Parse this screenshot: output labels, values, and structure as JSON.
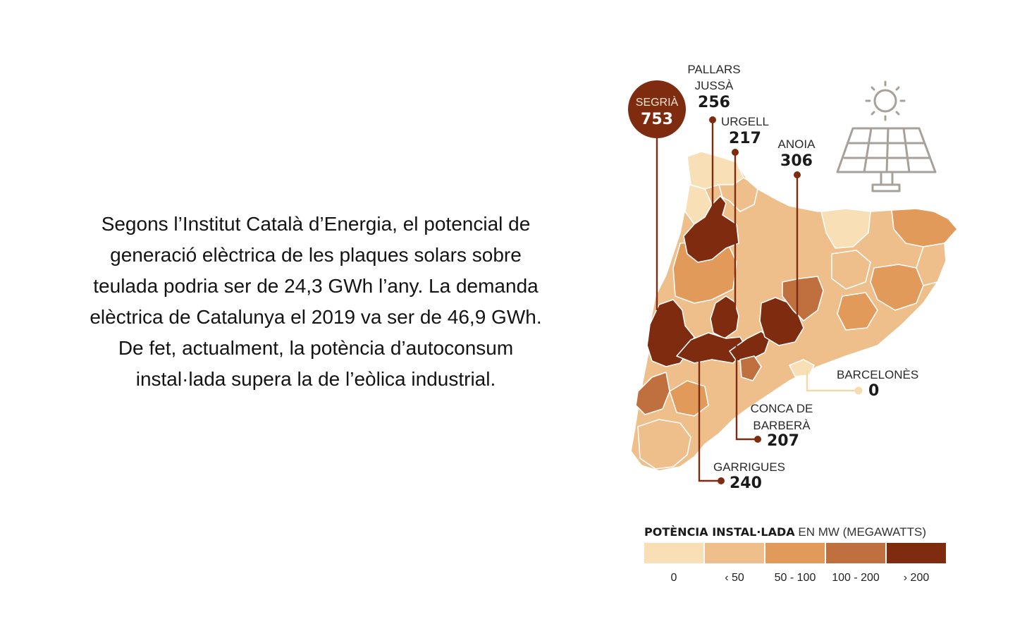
{
  "intro": {
    "lines": [
      "Segons l’Institut Català d’Energia, el potencial de",
      "generació elèctrica de les plaques solars sobre",
      "teulada podria ser de 24,3 GWh l’any. La demanda",
      "elèctrica de Catalunya el 2019 va ser de 46,9 GWh.",
      "De fet, actualment, la potència d’autoconsum",
      "instal·lada supera la de l’eòlica industrial."
    ]
  },
  "map": {
    "callouts": [
      {
        "id": "segria",
        "name": "SEGRIÀ",
        "value": "753"
      },
      {
        "id": "pallars",
        "name_lines": [
          "PALLARS",
          "JUSSÀ"
        ],
        "value": "256"
      },
      {
        "id": "urgell",
        "name": "URGELL",
        "value": "217"
      },
      {
        "id": "anoia",
        "name": "ANOIA",
        "value": "306"
      },
      {
        "id": "barcelones",
        "name": "BARCELONÈS",
        "value": "0"
      },
      {
        "id": "conca",
        "name_lines": [
          "CONCA DE",
          "BARBERÀ"
        ],
        "value": "207"
      },
      {
        "id": "garrigues",
        "name": "GARRIGUES",
        "value": "240"
      }
    ],
    "icon": "solar-panel-icon"
  },
  "legend": {
    "title_bold": "POTÈNCIA INSTAL·LADA",
    "title_rest": " EN MW (MEGAWATTS)",
    "classes": [
      {
        "label": "0",
        "color": "#f8dfb5"
      },
      {
        "label": "‹ 50",
        "color": "#efbf8b"
      },
      {
        "label": "50 - 100",
        "color": "#e19a5a"
      },
      {
        "label": "100 - 200",
        "color": "#c0703f"
      },
      {
        "label": "› 200",
        "color": "#7e2b10"
      }
    ]
  },
  "colors": {
    "c0": "#f8dfb5",
    "c1": "#efbf8b",
    "c2": "#e19a5a",
    "c3": "#c0703f",
    "c4": "#7e2b10",
    "leader": "#7e2b10",
    "leader_light": "#f1d9a9"
  }
}
